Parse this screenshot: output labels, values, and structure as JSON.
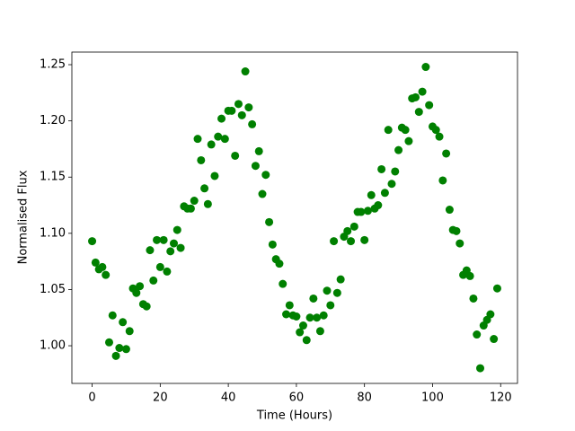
{
  "chart_data": {
    "type": "scatter",
    "xlabel": "Time (Hours)",
    "ylabel": "Normalised Flux",
    "color": "#008000",
    "xlim": [
      -5.95,
      124.95
    ],
    "ylim": [
      0.9665,
      1.2612
    ],
    "xticks": [
      0,
      20,
      40,
      60,
      80,
      100,
      120
    ],
    "yticks": [
      {
        "value": 1.0,
        "label": "1.00"
      },
      {
        "value": 1.05,
        "label": "1.05"
      },
      {
        "value": 1.1,
        "label": "1.10"
      },
      {
        "value": 1.15,
        "label": "1.15"
      },
      {
        "value": 1.2,
        "label": "1.20"
      },
      {
        "value": 1.25,
        "label": "1.25"
      }
    ],
    "x": [
      0,
      1,
      2,
      3,
      4,
      5,
      6,
      7,
      8,
      9,
      10,
      11,
      12,
      13,
      14,
      15,
      16,
      17,
      18,
      19,
      20,
      21,
      22,
      23,
      24,
      25,
      26,
      27,
      28,
      29,
      30,
      31,
      32,
      33,
      34,
      35,
      36,
      37,
      38,
      39,
      40,
      41,
      42,
      43,
      44,
      45,
      46,
      47,
      48,
      49,
      50,
      51,
      52,
      53,
      54,
      55,
      56,
      57,
      58,
      59,
      60,
      61,
      62,
      63,
      64,
      65,
      66,
      67,
      68,
      69,
      70,
      71,
      72,
      73,
      74,
      75,
      76,
      77,
      78,
      79,
      80,
      81,
      82,
      83,
      84,
      85,
      86,
      87,
      88,
      89,
      90,
      91,
      92,
      93,
      94,
      95,
      96,
      97,
      98,
      99,
      100,
      101,
      102,
      103,
      104,
      105,
      106,
      107,
      108,
      109,
      110,
      111,
      112,
      113,
      114,
      115,
      116,
      117,
      118,
      119
    ],
    "values": [
      1.093,
      1.074,
      1.068,
      1.07,
      1.063,
      1.003,
      1.027,
      0.991,
      0.998,
      1.021,
      0.997,
      1.013,
      1.051,
      1.047,
      1.053,
      1.037,
      1.035,
      1.085,
      1.058,
      1.094,
      1.07,
      1.094,
      1.066,
      1.084,
      1.091,
      1.103,
      1.087,
      1.124,
      1.122,
      1.122,
      1.129,
      1.184,
      1.165,
      1.14,
      1.126,
      1.179,
      1.151,
      1.186,
      1.202,
      1.184,
      1.209,
      1.209,
      1.169,
      1.215,
      1.205,
      1.244,
      1.212,
      1.197,
      1.16,
      1.173,
      1.135,
      1.152,
      1.11,
      1.09,
      1.077,
      1.073,
      1.055,
      1.028,
      1.036,
      1.027,
      1.026,
      1.012,
      1.018,
      1.005,
      1.025,
      1.042,
      1.025,
      1.013,
      1.027,
      1.049,
      1.036,
      1.093,
      1.047,
      1.059,
      1.097,
      1.102,
      1.093,
      1.106,
      1.119,
      1.119,
      1.094,
      1.12,
      1.134,
      1.122,
      1.125,
      1.157,
      1.136,
      1.192,
      1.144,
      1.155,
      1.174,
      1.194,
      1.192,
      1.182,
      1.22,
      1.221,
      1.208,
      1.226,
      1.248,
      1.214,
      1.195,
      1.192,
      1.186,
      1.147,
      1.171,
      1.121,
      1.103,
      1.102,
      1.091,
      1.063,
      1.067,
      1.062,
      1.042,
      1.01,
      0.98,
      1.018,
      1.023,
      1.028,
      1.006,
      1.051
    ]
  }
}
